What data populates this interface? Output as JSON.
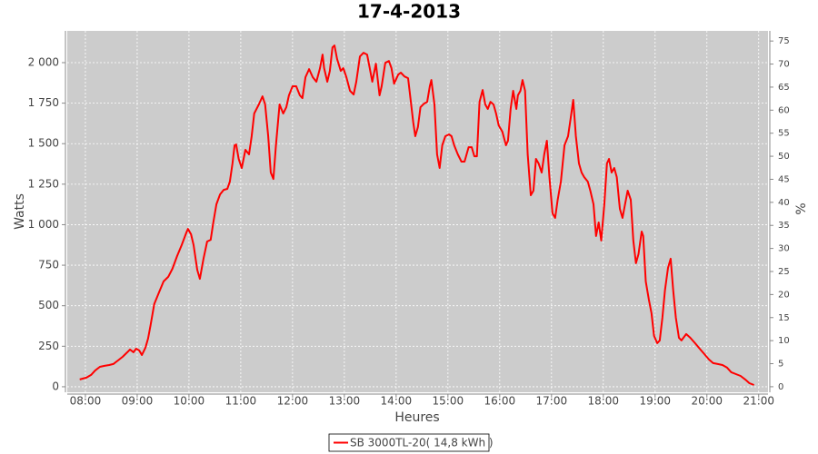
{
  "chart_data": {
    "type": "line",
    "title": "17-4-2013",
    "x_label": "Heures",
    "y_label": "Watts",
    "y2_label": "%",
    "xlim": [
      7.65,
      21.18
    ],
    "ylim": [
      -34,
      2196
    ],
    "y2lim": [
      -1.2,
      77.2
    ],
    "xticks": [
      {
        "value": 8,
        "label": "08:00"
      },
      {
        "value": 9,
        "label": "09:00"
      },
      {
        "value": 10,
        "label": "10:00"
      },
      {
        "value": 11,
        "label": "11:00"
      },
      {
        "value": 12,
        "label": "12:00"
      },
      {
        "value": 13,
        "label": "13:00"
      },
      {
        "value": 14,
        "label": "14:00"
      },
      {
        "value": 15,
        "label": "15:00"
      },
      {
        "value": 16,
        "label": "16:00"
      },
      {
        "value": 17,
        "label": "17:00"
      },
      {
        "value": 18,
        "label": "18:00"
      },
      {
        "value": 19,
        "label": "19:00"
      },
      {
        "value": 20,
        "label": "20:00"
      },
      {
        "value": 21,
        "label": "21:00"
      }
    ],
    "yticks": [
      0,
      250,
      500,
      750,
      {
        "value": 1000,
        "label": "1 000"
      },
      {
        "value": 1250,
        "label": "1 250"
      },
      {
        "value": 1500,
        "label": "1 500"
      },
      {
        "value": 1750,
        "label": "1 750"
      },
      {
        "value": 2000,
        "label": "2 000"
      }
    ],
    "y2ticks": [
      0,
      5,
      10,
      15,
      20,
      25,
      30,
      35,
      40,
      45,
      50,
      55,
      60,
      65,
      70,
      75
    ],
    "grid": true,
    "x": [
      7.89,
      8.02,
      8.11,
      8.19,
      8.28,
      8.37,
      8.46,
      8.54,
      8.63,
      8.72,
      8.81,
      8.86,
      8.93,
      8.98,
      9.04,
      9.09,
      9.16,
      9.21,
      9.26,
      9.33,
      9.42,
      9.51,
      9.6,
      9.68,
      9.77,
      9.86,
      9.95,
      9.98,
      10.04,
      10.09,
      10.16,
      10.21,
      10.28,
      10.35,
      10.42,
      10.47,
      10.53,
      10.6,
      10.67,
      10.74,
      10.79,
      10.84,
      10.88,
      10.91,
      10.96,
      11.02,
      11.09,
      11.16,
      11.21,
      11.26,
      11.35,
      11.42,
      11.47,
      11.53,
      11.58,
      11.63,
      11.68,
      11.75,
      11.82,
      11.88,
      11.93,
      12.0,
      12.07,
      12.14,
      12.19,
      12.25,
      12.32,
      12.39,
      12.46,
      12.53,
      12.58,
      12.61,
      12.67,
      12.72,
      12.77,
      12.81,
      12.86,
      12.93,
      12.98,
      13.04,
      13.11,
      13.18,
      13.23,
      13.3,
      13.37,
      13.44,
      13.49,
      13.54,
      13.61,
      13.68,
      13.72,
      13.79,
      13.86,
      13.91,
      13.96,
      14.04,
      14.09,
      14.16,
      14.23,
      14.28,
      14.33,
      14.37,
      14.42,
      14.47,
      14.54,
      14.6,
      14.65,
      14.68,
      14.74,
      14.79,
      14.84,
      14.89,
      14.95,
      15.02,
      15.07,
      15.12,
      15.19,
      15.26,
      15.32,
      15.4,
      15.46,
      15.51,
      15.56,
      15.61,
      15.67,
      15.72,
      15.77,
      15.82,
      15.88,
      15.93,
      15.98,
      16.05,
      16.12,
      16.16,
      16.21,
      16.26,
      16.32,
      16.35,
      16.4,
      16.44,
      16.49,
      16.54,
      16.6,
      16.65,
      16.7,
      16.75,
      16.81,
      16.86,
      16.91,
      16.96,
      17.02,
      17.07,
      17.12,
      17.18,
      17.25,
      17.32,
      17.37,
      17.42,
      17.47,
      17.53,
      17.58,
      17.63,
      17.7,
      17.75,
      17.81,
      17.86,
      17.91,
      17.96,
      18.02,
      18.07,
      18.11,
      18.16,
      18.21,
      18.26,
      18.32,
      18.37,
      18.42,
      18.47,
      18.53,
      18.58,
      18.63,
      18.68,
      18.74,
      18.77,
      18.82,
      18.88,
      18.93,
      18.98,
      19.04,
      19.09,
      19.14,
      19.19,
      19.25,
      19.3,
      19.35,
      19.4,
      19.46,
      19.51,
      19.6,
      19.68,
      19.77,
      19.86,
      19.95,
      20.04,
      20.12,
      20.21,
      20.3,
      20.39,
      20.47,
      20.56,
      20.65,
      20.74,
      20.82,
      20.91
    ],
    "series": [
      {
        "name": "SB 3000TL-20( 14,8 kWh )",
        "color": "#ff0000",
        "values": [
          45,
          56,
          73,
          101,
          123,
          129,
          134,
          140,
          162,
          185,
          213,
          230,
          213,
          235,
          224,
          196,
          241,
          297,
          381,
          510,
          582,
          650,
          678,
          728,
          806,
          874,
          952,
          974,
          941,
          874,
          722,
          666,
          790,
          896,
          907,
          1014,
          1126,
          1187,
          1215,
          1221,
          1266,
          1378,
          1490,
          1495,
          1406,
          1350,
          1462,
          1434,
          1546,
          1686,
          1742,
          1792,
          1742,
          1546,
          1322,
          1282,
          1490,
          1742,
          1686,
          1725,
          1798,
          1854,
          1854,
          1798,
          1781,
          1910,
          1960,
          1910,
          1882,
          1966,
          2050,
          1966,
          1882,
          1949,
          2094,
          2106,
          2022,
          1949,
          1966,
          1910,
          1826,
          1803,
          1882,
          2038,
          2061,
          2050,
          1966,
          1882,
          1994,
          1798,
          1854,
          1999,
          2010,
          1966,
          1870,
          1926,
          1938,
          1915,
          1904,
          1770,
          1630,
          1546,
          1602,
          1725,
          1747,
          1758,
          1854,
          1893,
          1742,
          1434,
          1350,
          1490,
          1546,
          1557,
          1546,
          1490,
          1434,
          1389,
          1389,
          1478,
          1478,
          1422,
          1422,
          1758,
          1831,
          1742,
          1714,
          1758,
          1742,
          1686,
          1613,
          1574,
          1490,
          1518,
          1714,
          1826,
          1714,
          1798,
          1826,
          1893,
          1826,
          1434,
          1182,
          1210,
          1406,
          1378,
          1322,
          1434,
          1518,
          1294,
          1070,
          1042,
          1154,
          1266,
          1490,
          1546,
          1658,
          1770,
          1546,
          1378,
          1322,
          1294,
          1266,
          1210,
          1126,
          930,
          1014,
          902,
          1126,
          1378,
          1406,
          1322,
          1350,
          1294,
          1098,
          1042,
          1126,
          1210,
          1154,
          902,
          762,
          818,
          958,
          930,
          650,
          538,
          454,
          314,
          269,
          286,
          426,
          594,
          734,
          790,
          594,
          426,
          302,
          286,
          325,
          302,
          269,
          235,
          202,
          168,
          146,
          140,
          134,
          118,
          90,
          78,
          67,
          45,
          22,
          11
        ]
      }
    ]
  }
}
